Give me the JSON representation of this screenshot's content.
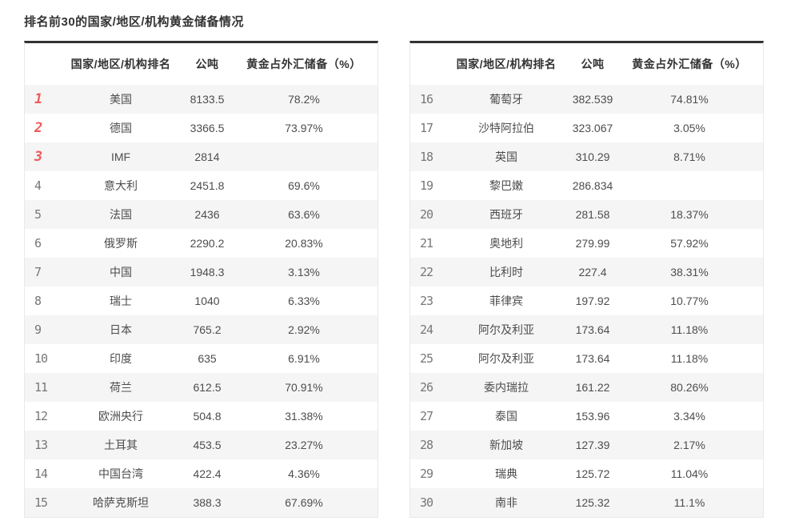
{
  "page_title": "排名前30的国家/地区/机构黄金储备情况",
  "headers": {
    "rank": "",
    "country": "国家/地区/机构排名",
    "tons": "公吨",
    "pct": "黄金占外汇储备（%）"
  },
  "colors": {
    "title_text": "#333333",
    "table_top_border": "#333333",
    "table_edge_border": "#e9e9e9",
    "stripe_gray": "#f5f5f5",
    "body_text": "#4d4d4d",
    "rank_gray": "#777777",
    "rank_top3_red": "#f05a5a"
  },
  "tables": [
    {
      "rows": [
        {
          "rank": "1",
          "country": "美国",
          "tons": "8133.5",
          "pct": "78.2%"
        },
        {
          "rank": "2",
          "country": "德国",
          "tons": "3366.5",
          "pct": "73.97%"
        },
        {
          "rank": "3",
          "country": "IMF",
          "tons": "2814",
          "pct": ""
        },
        {
          "rank": "4",
          "country": "意大利",
          "tons": "2451.8",
          "pct": "69.6%"
        },
        {
          "rank": "5",
          "country": "法国",
          "tons": "2436",
          "pct": "63.6%"
        },
        {
          "rank": "6",
          "country": "俄罗斯",
          "tons": "2290.2",
          "pct": "20.83%"
        },
        {
          "rank": "7",
          "country": "中国",
          "tons": "1948.3",
          "pct": "3.13%"
        },
        {
          "rank": "8",
          "country": "瑞士",
          "tons": "1040",
          "pct": "6.33%"
        },
        {
          "rank": "9",
          "country": "日本",
          "tons": "765.2",
          "pct": "2.92%"
        },
        {
          "rank": "10",
          "country": "印度",
          "tons": "635",
          "pct": "6.91%"
        },
        {
          "rank": "11",
          "country": "荷兰",
          "tons": "612.5",
          "pct": "70.91%"
        },
        {
          "rank": "12",
          "country": "欧洲央行",
          "tons": "504.8",
          "pct": "31.38%"
        },
        {
          "rank": "13",
          "country": "土耳其",
          "tons": "453.5",
          "pct": "23.27%"
        },
        {
          "rank": "14",
          "country": "中国台湾",
          "tons": "422.4",
          "pct": "4.36%"
        },
        {
          "rank": "15",
          "country": "哈萨克斯坦",
          "tons": "388.3",
          "pct": "67.69%"
        }
      ]
    },
    {
      "rows": [
        {
          "rank": "16",
          "country": "葡萄牙",
          "tons": "382.539",
          "pct": "74.81%"
        },
        {
          "rank": "17",
          "country": "沙特阿拉伯",
          "tons": "323.067",
          "pct": "3.05%"
        },
        {
          "rank": "18",
          "country": "英国",
          "tons": "310.29",
          "pct": "8.71%"
        },
        {
          "rank": "19",
          "country": "黎巴嫩",
          "tons": "286.834",
          "pct": ""
        },
        {
          "rank": "20",
          "country": "西班牙",
          "tons": "281.58",
          "pct": "18.37%"
        },
        {
          "rank": "21",
          "country": "奥地利",
          "tons": "279.99",
          "pct": "57.92%"
        },
        {
          "rank": "22",
          "country": "比利时",
          "tons": "227.4",
          "pct": "38.31%"
        },
        {
          "rank": "23",
          "country": "菲律宾",
          "tons": "197.92",
          "pct": "10.77%"
        },
        {
          "rank": "24",
          "country": "阿尔及利亚",
          "tons": "173.64",
          "pct": "11.18%"
        },
        {
          "rank": "25",
          "country": "阿尔及利亚",
          "tons": "173.64",
          "pct": "11.18%"
        },
        {
          "rank": "26",
          "country": "委内瑞拉",
          "tons": "161.22",
          "pct": "80.26%"
        },
        {
          "rank": "27",
          "country": "泰国",
          "tons": "153.96",
          "pct": "3.34%"
        },
        {
          "rank": "28",
          "country": "新加坡",
          "tons": "127.39",
          "pct": "2.17%"
        },
        {
          "rank": "29",
          "country": "瑞典",
          "tons": "125.72",
          "pct": "11.04%"
        },
        {
          "rank": "30",
          "country": "南非",
          "tons": "125.32",
          "pct": "11.1%"
        }
      ]
    }
  ]
}
